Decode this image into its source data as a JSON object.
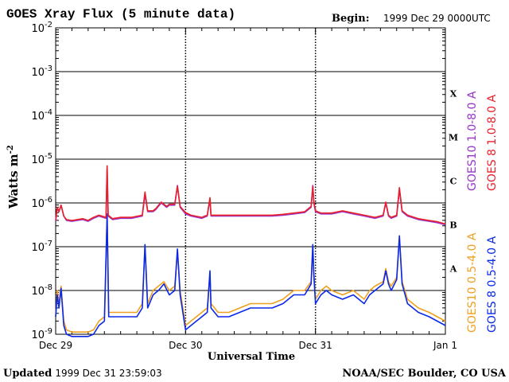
{
  "chart_data": {
    "type": "line",
    "title": "GOES Xray Flux (5 minute data)",
    "begin_label": "Begin:",
    "begin_value": "1999 Dec 29 0000UTC",
    "xlabel": "Universal Time",
    "ylabel": "Watts m",
    "ylabel_sup": "-2",
    "xlim": [
      0,
      72
    ],
    "ylim": [
      -9,
      -2
    ],
    "y_scale": "log10",
    "grid": true,
    "x_ticks": [
      {
        "x": 0,
        "label": "Dec 29"
      },
      {
        "x": 24,
        "label": "Dec 30"
      },
      {
        "x": 48,
        "label": "Dec 31"
      },
      {
        "x": 72,
        "label": "Jan 1"
      }
    ],
    "y_ticks": [
      {
        "exp": -2,
        "base": "10",
        "sup": "-2"
      },
      {
        "exp": -3,
        "base": "10",
        "sup": "-3"
      },
      {
        "exp": -4,
        "base": "10",
        "sup": "-4"
      },
      {
        "exp": -5,
        "base": "10",
        "sup": "-5"
      },
      {
        "exp": -6,
        "base": "10",
        "sup": "-6"
      },
      {
        "exp": -7,
        "base": "10",
        "sup": "-7"
      },
      {
        "exp": -8,
        "base": "10",
        "sup": "-8"
      },
      {
        "exp": -9,
        "base": "10",
        "sup": "-9"
      }
    ],
    "flare_classes": [
      {
        "label": "X",
        "exp": -3.5
      },
      {
        "label": "M",
        "exp": -4.5
      },
      {
        "label": "C",
        "exp": -5.5
      },
      {
        "label": "B",
        "exp": -6.5
      },
      {
        "label": "A",
        "exp": -7.5
      }
    ],
    "series": [
      {
        "name": "GOES10 1.0-8.0 A",
        "color": "#9933cc",
        "points": [
          [
            0,
            -6.42
          ],
          [
            0.3,
            -6.1
          ],
          [
            0.6,
            -6.2
          ],
          [
            1,
            -6.05
          ],
          [
            1.5,
            -6.3
          ],
          [
            2,
            -6.4
          ],
          [
            3,
            -6.42
          ],
          [
            4,
            -6.4
          ],
          [
            5,
            -6.38
          ],
          [
            6,
            -6.42
          ],
          [
            7,
            -6.35
          ],
          [
            8,
            -6.3
          ],
          [
            9.3,
            -6.35
          ],
          [
            9.5,
            -5.2
          ],
          [
            9.7,
            -6.3
          ],
          [
            10.5,
            -6.38
          ],
          [
            12,
            -6.35
          ],
          [
            14,
            -6.35
          ],
          [
            16,
            -6.3
          ],
          [
            16.5,
            -5.8
          ],
          [
            17,
            -6.2
          ],
          [
            18,
            -6.2
          ],
          [
            18.5,
            -6.15
          ],
          [
            19.5,
            -6.0
          ],
          [
            20.5,
            -6.1
          ],
          [
            21,
            -6.05
          ],
          [
            22,
            -6.05
          ],
          [
            22.5,
            -5.6
          ],
          [
            23,
            -6.1
          ],
          [
            24,
            -6.25
          ],
          [
            25,
            -6.3
          ],
          [
            27,
            -6.35
          ],
          [
            28,
            -6.3
          ],
          [
            28.5,
            -5.9
          ],
          [
            28.7,
            -6.3
          ],
          [
            30,
            -6.3
          ],
          [
            32,
            -6.3
          ],
          [
            34,
            -6.3
          ],
          [
            36,
            -6.3
          ],
          [
            38,
            -6.3
          ],
          [
            40,
            -6.3
          ],
          [
            42,
            -6.28
          ],
          [
            44,
            -6.25
          ],
          [
            46,
            -6.22
          ],
          [
            47.2,
            -6.1
          ],
          [
            47.5,
            -5.6
          ],
          [
            47.7,
            -6.0
          ],
          [
            48,
            -6.2
          ],
          [
            49,
            -6.25
          ],
          [
            51,
            -6.25
          ],
          [
            53,
            -6.2
          ],
          [
            55,
            -6.25
          ],
          [
            57,
            -6.3
          ],
          [
            59,
            -6.35
          ],
          [
            60.5,
            -6.3
          ],
          [
            61,
            -6.0
          ],
          [
            61.5,
            -6.3
          ],
          [
            62,
            -6.35
          ],
          [
            63,
            -6.3
          ],
          [
            63.5,
            -5.7
          ],
          [
            64,
            -6.2
          ],
          [
            65,
            -6.3
          ],
          [
            67,
            -6.38
          ],
          [
            69,
            -6.42
          ],
          [
            70.5,
            -6.45
          ],
          [
            72,
            -6.5
          ]
        ]
      },
      {
        "name": "GOES 8 1.0-8.0 A",
        "color": "#e8202a",
        "points": [
          [
            0,
            -6.4
          ],
          [
            0.3,
            -6.1
          ],
          [
            0.6,
            -6.2
          ],
          [
            1,
            -6.05
          ],
          [
            1.5,
            -6.3
          ],
          [
            2,
            -6.38
          ],
          [
            3,
            -6.4
          ],
          [
            4,
            -6.38
          ],
          [
            5,
            -6.36
          ],
          [
            6,
            -6.4
          ],
          [
            7,
            -6.33
          ],
          [
            8,
            -6.28
          ],
          [
            9.3,
            -6.33
          ],
          [
            9.5,
            -5.15
          ],
          [
            9.7,
            -6.28
          ],
          [
            10.5,
            -6.36
          ],
          [
            12,
            -6.33
          ],
          [
            14,
            -6.33
          ],
          [
            16,
            -6.28
          ],
          [
            16.5,
            -5.75
          ],
          [
            17,
            -6.18
          ],
          [
            18,
            -6.18
          ],
          [
            18.5,
            -6.13
          ],
          [
            19.5,
            -5.98
          ],
          [
            20.5,
            -6.08
          ],
          [
            21,
            -6.03
          ],
          [
            22,
            -6.03
          ],
          [
            22.5,
            -5.62
          ],
          [
            23,
            -6.08
          ],
          [
            24,
            -6.22
          ],
          [
            25,
            -6.28
          ],
          [
            27,
            -6.33
          ],
          [
            28,
            -6.28
          ],
          [
            28.5,
            -5.88
          ],
          [
            28.7,
            -6.28
          ],
          [
            30,
            -6.28
          ],
          [
            32,
            -6.28
          ],
          [
            34,
            -6.28
          ],
          [
            36,
            -6.28
          ],
          [
            38,
            -6.28
          ],
          [
            40,
            -6.28
          ],
          [
            42,
            -6.26
          ],
          [
            44,
            -6.23
          ],
          [
            46,
            -6.2
          ],
          [
            47.2,
            -6.08
          ],
          [
            47.5,
            -5.62
          ],
          [
            47.7,
            -5.98
          ],
          [
            48,
            -6.18
          ],
          [
            49,
            -6.23
          ],
          [
            51,
            -6.23
          ],
          [
            53,
            -6.18
          ],
          [
            55,
            -6.23
          ],
          [
            57,
            -6.28
          ],
          [
            59,
            -6.33
          ],
          [
            60.5,
            -6.28
          ],
          [
            61,
            -5.98
          ],
          [
            61.5,
            -6.28
          ],
          [
            62,
            -6.33
          ],
          [
            63,
            -6.28
          ],
          [
            63.5,
            -5.65
          ],
          [
            64,
            -6.18
          ],
          [
            65,
            -6.28
          ],
          [
            67,
            -6.36
          ],
          [
            69,
            -6.4
          ],
          [
            70.5,
            -6.43
          ],
          [
            72,
            -6.48
          ]
        ]
      },
      {
        "name": "GOES10 0.5-4.0 A",
        "color": "#f0a020",
        "points": [
          [
            0,
            -8.6
          ],
          [
            0.3,
            -8.0
          ],
          [
            0.6,
            -8.3
          ],
          [
            1,
            -7.9
          ],
          [
            1.5,
            -8.7
          ],
          [
            2,
            -8.9
          ],
          [
            3,
            -8.95
          ],
          [
            4,
            -8.95
          ],
          [
            5,
            -8.95
          ],
          [
            6,
            -8.95
          ],
          [
            7,
            -8.9
          ],
          [
            8,
            -8.7
          ],
          [
            9,
            -8.6
          ],
          [
            9.5,
            -6.3
          ],
          [
            9.8,
            -8.5
          ],
          [
            11,
            -8.5
          ],
          [
            13,
            -8.5
          ],
          [
            15,
            -8.5
          ],
          [
            16,
            -8.3
          ],
          [
            16.5,
            -7.0
          ],
          [
            17,
            -8.3
          ],
          [
            18,
            -8.0
          ],
          [
            19,
            -7.9
          ],
          [
            20,
            -7.8
          ],
          [
            21,
            -8.0
          ],
          [
            22,
            -7.9
          ],
          [
            22.5,
            -7.1
          ],
          [
            23,
            -8.0
          ],
          [
            24,
            -8.8
          ],
          [
            25,
            -8.7
          ],
          [
            26,
            -8.6
          ],
          [
            27,
            -8.5
          ],
          [
            28,
            -8.4
          ],
          [
            28.5,
            -7.6
          ],
          [
            28.7,
            -8.3
          ],
          [
            30,
            -8.5
          ],
          [
            32,
            -8.5
          ],
          [
            34,
            -8.4
          ],
          [
            36,
            -8.3
          ],
          [
            38,
            -8.3
          ],
          [
            40,
            -8.3
          ],
          [
            42,
            -8.2
          ],
          [
            44,
            -8.0
          ],
          [
            46,
            -8.0
          ],
          [
            47.2,
            -7.8
          ],
          [
            47.5,
            -7.0
          ],
          [
            47.7,
            -7.6
          ],
          [
            48,
            -8.2
          ],
          [
            49,
            -8.0
          ],
          [
            50,
            -7.9
          ],
          [
            51,
            -8.0
          ],
          [
            53,
            -8.1
          ],
          [
            55,
            -8.0
          ],
          [
            57,
            -8.2
          ],
          [
            58,
            -8.0
          ],
          [
            59,
            -7.9
          ],
          [
            60.5,
            -7.8
          ],
          [
            61,
            -7.5
          ],
          [
            61.5,
            -7.8
          ],
          [
            62,
            -7.9
          ],
          [
            63,
            -7.7
          ],
          [
            63.5,
            -6.8
          ],
          [
            64,
            -7.8
          ],
          [
            65,
            -8.2
          ],
          [
            67,
            -8.4
          ],
          [
            69,
            -8.5
          ],
          [
            70.5,
            -8.6
          ],
          [
            72,
            -8.7
          ]
        ]
      },
      {
        "name": "GOES 8 0.5-4.0 A",
        "color": "#0a28e8",
        "points": [
          [
            0,
            -8.6
          ],
          [
            0.3,
            -8.1
          ],
          [
            0.6,
            -8.4
          ],
          [
            1,
            -7.95
          ],
          [
            1.5,
            -8.8
          ],
          [
            2,
            -9.0
          ],
          [
            3,
            -9.05
          ],
          [
            4,
            -9.05
          ],
          [
            5,
            -9.05
          ],
          [
            6,
            -9.05
          ],
          [
            7,
            -9.0
          ],
          [
            8,
            -8.8
          ],
          [
            9,
            -8.7
          ],
          [
            9.5,
            -6.25
          ],
          [
            9.8,
            -8.6
          ],
          [
            11,
            -8.6
          ],
          [
            13,
            -8.6
          ],
          [
            15,
            -8.6
          ],
          [
            16,
            -8.4
          ],
          [
            16.5,
            -6.95
          ],
          [
            17,
            -8.4
          ],
          [
            18,
            -8.1
          ],
          [
            19,
            -8.0
          ],
          [
            20,
            -7.85
          ],
          [
            21,
            -8.1
          ],
          [
            22,
            -8.0
          ],
          [
            22.5,
            -7.05
          ],
          [
            23,
            -8.1
          ],
          [
            24,
            -8.9
          ],
          [
            25,
            -8.8
          ],
          [
            26,
            -8.7
          ],
          [
            27,
            -8.6
          ],
          [
            28,
            -8.5
          ],
          [
            28.5,
            -7.55
          ],
          [
            28.7,
            -8.4
          ],
          [
            30,
            -8.6
          ],
          [
            32,
            -8.6
          ],
          [
            34,
            -8.5
          ],
          [
            36,
            -8.4
          ],
          [
            38,
            -8.4
          ],
          [
            40,
            -8.4
          ],
          [
            42,
            -8.3
          ],
          [
            44,
            -8.1
          ],
          [
            46,
            -8.1
          ],
          [
            47.2,
            -7.85
          ],
          [
            47.5,
            -6.95
          ],
          [
            47.7,
            -7.65
          ],
          [
            48,
            -8.3
          ],
          [
            49,
            -8.1
          ],
          [
            50,
            -8.0
          ],
          [
            51,
            -8.1
          ],
          [
            53,
            -8.2
          ],
          [
            55,
            -8.1
          ],
          [
            57,
            -8.3
          ],
          [
            58,
            -8.1
          ],
          [
            59,
            -8.0
          ],
          [
            60.5,
            -7.85
          ],
          [
            61,
            -7.55
          ],
          [
            61.5,
            -7.85
          ],
          [
            62,
            -8.0
          ],
          [
            63,
            -7.75
          ],
          [
            63.5,
            -6.75
          ],
          [
            64,
            -7.85
          ],
          [
            65,
            -8.3
          ],
          [
            67,
            -8.5
          ],
          [
            69,
            -8.6
          ],
          [
            70.5,
            -8.7
          ],
          [
            72,
            -8.8
          ]
        ]
      }
    ]
  },
  "footer": {
    "updated_label": "Updated",
    "updated_value": "1999 Dec 31 23:59:03",
    "credit": "NOAA/SEC Boulder, CO USA"
  }
}
